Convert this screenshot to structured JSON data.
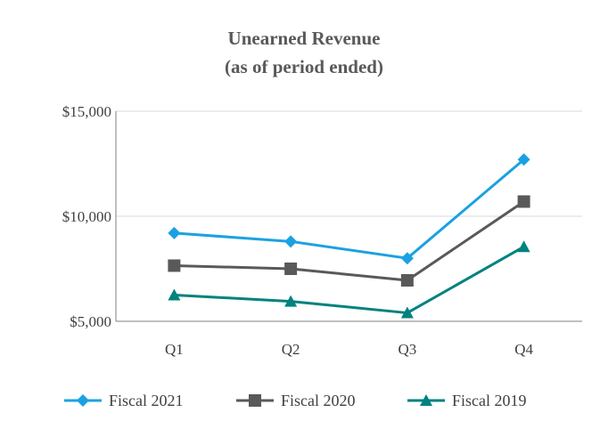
{
  "chart_data": {
    "type": "line",
    "title": "Unearned Revenue",
    "subtitle": "(as of period ended)",
    "xlabel": "",
    "ylabel": "",
    "categories": [
      "Q1",
      "Q2",
      "Q3",
      "Q4"
    ],
    "ylim": [
      5000,
      15000
    ],
    "yticks": [
      5000,
      10000,
      15000
    ],
    "ytick_labels": [
      "$5,000",
      "$10,000",
      "$15,000"
    ],
    "grid": true,
    "legend_position": "bottom",
    "series": [
      {
        "name": "Fiscal 2021",
        "values": [
          9200,
          8800,
          8000,
          12700
        ],
        "color": "#1BA1E2",
        "marker": "diamond"
      },
      {
        "name": "Fiscal 2020",
        "values": [
          7650,
          7500,
          6950,
          10700
        ],
        "color": "#595959",
        "marker": "square"
      },
      {
        "name": "Fiscal 2019",
        "values": [
          6250,
          5950,
          5400,
          8550
        ],
        "color": "#00827F",
        "marker": "triangle"
      }
    ]
  }
}
